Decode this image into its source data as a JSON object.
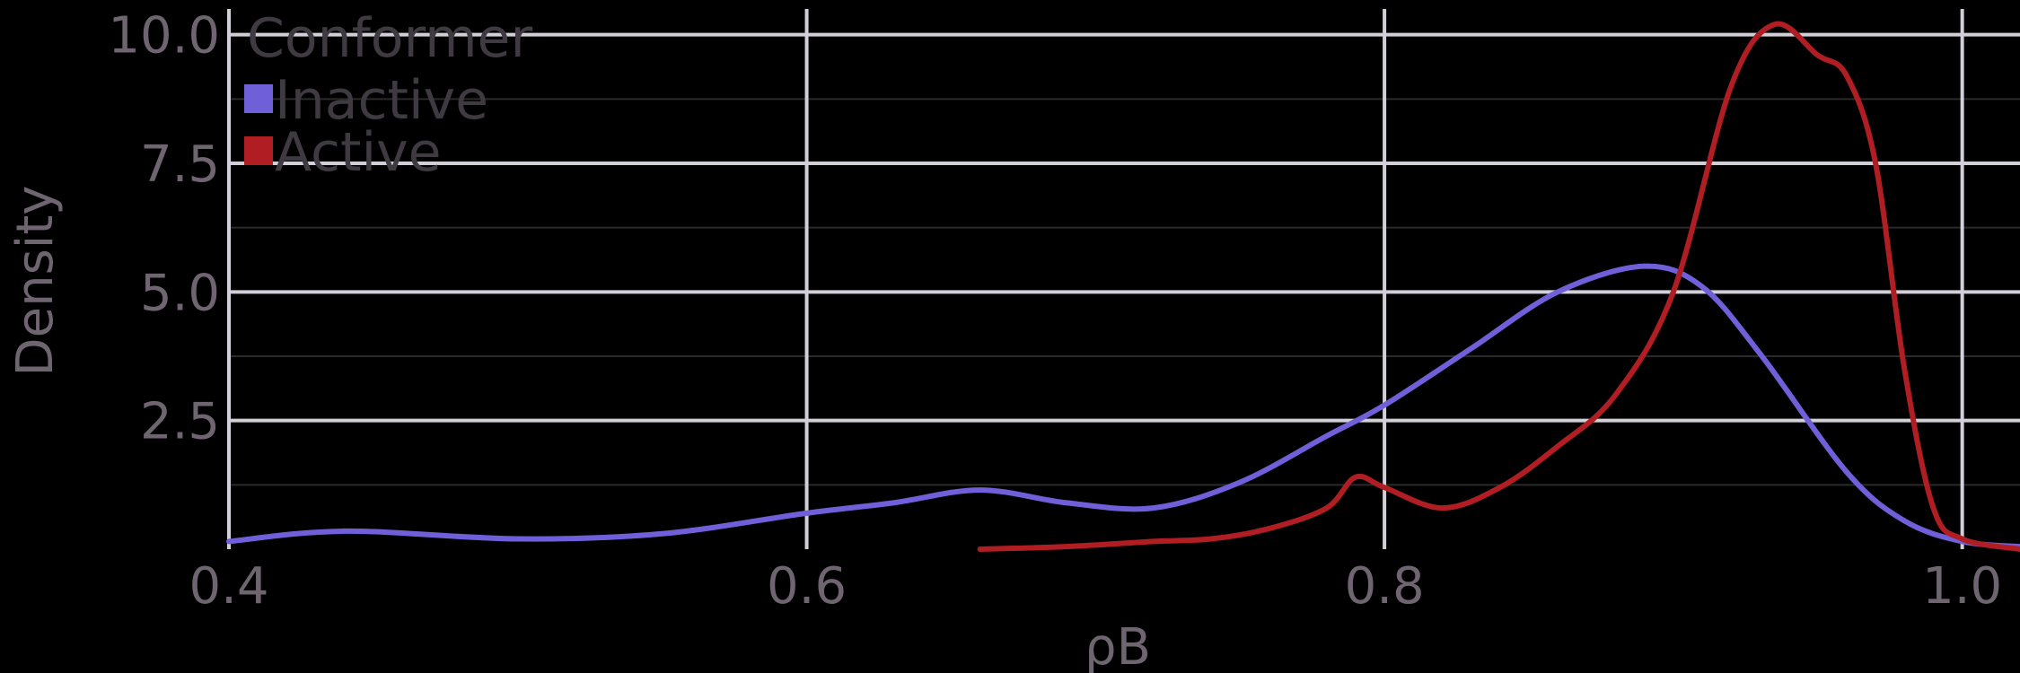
{
  "chart_data": {
    "type": "line",
    "title": "",
    "xlabel": "ρB",
    "ylabel": "Density",
    "xlim": [
      0.4,
      1.02
    ],
    "ylim": [
      0,
      10.5
    ],
    "xticks": [
      0.4,
      0.6,
      0.8,
      1.0
    ],
    "xtick_labels": [
      "0.4",
      "0.6",
      "0.8",
      "1.0"
    ],
    "yticks": [
      2.5,
      5.0,
      7.5,
      10.0
    ],
    "ytick_labels": [
      "2.5",
      "5.0",
      "7.5",
      "10.0"
    ],
    "grid": true,
    "legend": {
      "title": "Conformer",
      "position": "top-left"
    },
    "series": [
      {
        "name": "Inactive",
        "color": "#6f5fd8",
        "x": [
          0.4,
          0.44,
          0.5,
          0.55,
          0.6,
          0.63,
          0.66,
          0.69,
          0.72,
          0.75,
          0.78,
          0.8,
          0.83,
          0.86,
          0.89,
          0.91,
          0.93,
          0.96,
          0.98,
          1.0,
          1.02
        ],
        "y": [
          0.15,
          0.35,
          0.2,
          0.3,
          0.7,
          0.9,
          1.15,
          0.9,
          0.8,
          1.3,
          2.2,
          2.8,
          3.9,
          5.0,
          5.5,
          5.1,
          3.8,
          1.5,
          0.55,
          0.15,
          0.05
        ]
      },
      {
        "name": "Active",
        "color": "#b01e23",
        "x": [
          0.66,
          0.69,
          0.72,
          0.74,
          0.76,
          0.78,
          0.79,
          0.8,
          0.82,
          0.84,
          0.86,
          0.88,
          0.9,
          0.92,
          0.935,
          0.95,
          0.96,
          0.97,
          0.98,
          0.99,
          1.0,
          1.02
        ],
        "y": [
          0.0,
          0.05,
          0.15,
          0.2,
          0.4,
          0.8,
          1.4,
          1.2,
          0.8,
          1.2,
          2.0,
          3.0,
          5.0,
          9.0,
          10.2,
          9.6,
          9.2,
          7.5,
          3.5,
          0.8,
          0.2,
          0.0
        ]
      }
    ]
  }
}
